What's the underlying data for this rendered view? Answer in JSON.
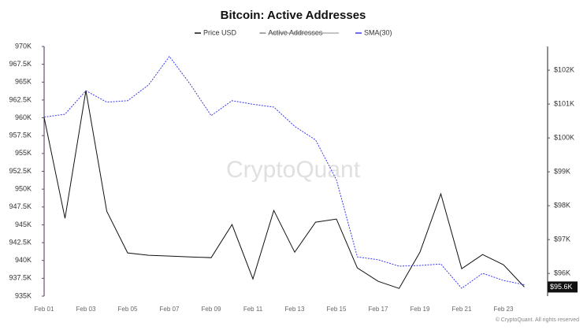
{
  "chart_data": {
    "type": "line",
    "title": "Bitcoin: Active Addresses",
    "watermark": "CryptoQuant",
    "footer": "© CryptoQuant. All rights reserved",
    "categories": [
      "Feb 01",
      null,
      "Feb 03",
      null,
      "Feb 05",
      null,
      "Feb 07",
      null,
      "Feb 09",
      null,
      "Feb 11",
      null,
      "Feb 13",
      null,
      "Feb 15",
      null,
      "Feb 17",
      null,
      "Feb 19",
      null,
      "Feb 21",
      null,
      "Feb 23",
      null
    ],
    "series": [
      {
        "name": "Price USD",
        "color": "#111111",
        "axis": "y2",
        "values": [
          100605,
          97628,
          101395,
          97837,
          96605,
          96535,
          96512,
          96488,
          96465,
          97442,
          95837,
          97860,
          96628,
          97512,
          97605,
          96163,
          95767,
          95558,
          96628,
          98349,
          96140,
          96558,
          96256,
          95600
        ],
        "value_labels": [
          null,
          null,
          null,
          null,
          null,
          null,
          null,
          null,
          null,
          null,
          null,
          null,
          null,
          null,
          null,
          null,
          null,
          null,
          null,
          null,
          null,
          null,
          null,
          "$95.6K"
        ]
      },
      {
        "name": "Active Addresses",
        "color": "#888888",
        "hidden": true
      },
      {
        "name": "SMA(30)",
        "color": "#3a3af2",
        "dashed": true,
        "values": [
          960100,
          960500,
          963800,
          962200,
          962400,
          964600,
          968600,
          964700,
          960300,
          962400,
          961900,
          961500,
          958800,
          956900,
          951300,
          940500,
          940100,
          939200,
          939300,
          939500,
          936100,
          938200,
          937200,
          936600
        ]
      }
    ],
    "ylim": [
      935000,
      970000
    ],
    "yticks": [
      {
        "value": 935000,
        "label": "935K"
      },
      {
        "value": 937500,
        "label": "937.5K"
      },
      {
        "value": 940000,
        "label": "940K"
      },
      {
        "value": 942500,
        "label": "942.5K"
      },
      {
        "value": 945000,
        "label": "945K"
      },
      {
        "value": 947500,
        "label": "947.5K"
      },
      {
        "value": 950000,
        "label": "950K"
      },
      {
        "value": 952500,
        "label": "952.5K"
      },
      {
        "value": 955000,
        "label": "955K"
      },
      {
        "value": 957500,
        "label": "957.5K"
      },
      {
        "value": 960000,
        "label": "960K"
      },
      {
        "value": 962500,
        "label": "962.5K"
      },
      {
        "value": 965000,
        "label": "965K"
      },
      {
        "value": 967500,
        "label": "967.5K"
      },
      {
        "value": 970000,
        "label": "970K"
      }
    ],
    "y2lim": [
      95330,
      102700
    ],
    "y2ticks": [
      {
        "value": 96000,
        "label": "$96K"
      },
      {
        "value": 97000,
        "label": "$97K"
      },
      {
        "value": 98000,
        "label": "$98K"
      },
      {
        "value": 99000,
        "label": "$99K"
      },
      {
        "value": 100000,
        "label": "$100K"
      },
      {
        "value": 101000,
        "label": "$101K"
      },
      {
        "value": 102000,
        "label": "$102K"
      }
    ]
  }
}
